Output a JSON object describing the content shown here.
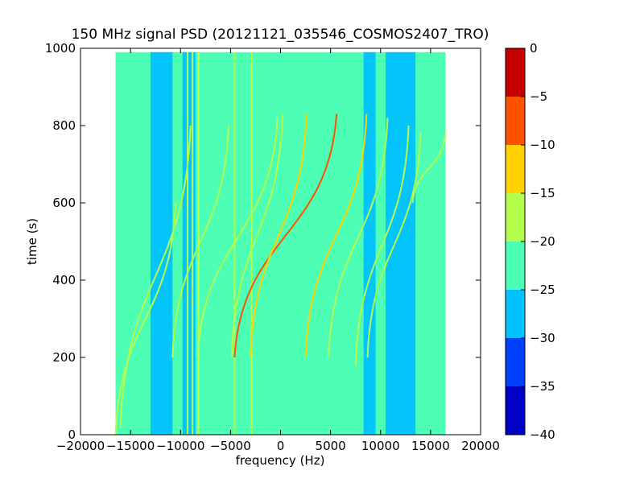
{
  "chart_data": {
    "type": "heatmap",
    "title": "150 MHz signal PSD (20121121_035546_COSMOS2407_TRO)",
    "xlabel": "frequency (Hz)",
    "ylabel": "time (s)",
    "xlim": [
      -20000,
      20000
    ],
    "ylim": [
      0,
      1000
    ],
    "x_ticks": [
      -20000,
      -15000,
      -10000,
      -5000,
      0,
      5000,
      10000,
      15000,
      20000
    ],
    "x_tick_labels": [
      "−20000",
      "−15000",
      "−10000",
      "−5000",
      "0",
      "5000",
      "10000",
      "15000",
      "20000"
    ],
    "y_ticks": [
      0,
      200,
      400,
      600,
      800,
      1000
    ],
    "y_tick_labels": [
      "0",
      "200",
      "400",
      "600",
      "800",
      "1000"
    ],
    "data_extent": {
      "x": [
        -16500,
        16500
      ],
      "y": [
        0,
        990
      ]
    },
    "background_level": -22.5,
    "bands": [
      {
        "x0": -13000,
        "x1": -10800,
        "level": -27.5
      },
      {
        "x0": -9800,
        "x1": -8500,
        "level": -27.5
      },
      {
        "x0": 8300,
        "x1": 9500,
        "level": -27.5
      },
      {
        "x0": 10500,
        "x1": 13500,
        "level": -27.5
      }
    ],
    "vertical_lines": [
      {
        "x": -9300,
        "level": -17.5
      },
      {
        "x": -8800,
        "level": -17.5
      },
      {
        "x": -8200,
        "level": -17.5
      },
      {
        "x": -4600,
        "level": -17.5
      },
      {
        "x": -2900,
        "level": -17.5
      },
      {
        "x": -1200,
        "level": -22.5
      }
    ],
    "tracks": [
      {
        "x_start": -4600,
        "x_end": 5600,
        "t_start": 200,
        "t_end": 830,
        "level": -7.5
      },
      {
        "x_start": -3000,
        "x_end": 2600,
        "t_start": 200,
        "t_end": 830,
        "level": -12.5
      },
      {
        "x_start": -4900,
        "x_end": 200,
        "t_start": 200,
        "t_end": 830,
        "level": -17.5
      },
      {
        "x_start": -8300,
        "x_end": -300,
        "t_start": 200,
        "t_end": 820,
        "level": -17.5
      },
      {
        "x_start": -10800,
        "x_end": -5200,
        "t_start": 200,
        "t_end": 800,
        "level": -17.5
      },
      {
        "x_start": -16000,
        "x_end": -9000,
        "t_start": 20,
        "t_end": 800,
        "level": -17.5
      },
      {
        "x_start": -16500,
        "x_end": -10500,
        "t_start": 0,
        "t_end": 600,
        "level": -17.5
      },
      {
        "x_start": 2500,
        "x_end": 8600,
        "t_start": 200,
        "t_end": 830,
        "level": -12.5
      },
      {
        "x_start": 4800,
        "x_end": 10700,
        "t_start": 200,
        "t_end": 820,
        "level": -17.5
      },
      {
        "x_start": 7500,
        "x_end": 12800,
        "t_start": 180,
        "t_end": 800,
        "level": -17.5
      },
      {
        "x_start": 8700,
        "x_end": 14000,
        "t_start": 200,
        "t_end": 780,
        "level": -17.5
      },
      {
        "x_start": 13200,
        "x_end": 16500,
        "t_start": 600,
        "t_end": 780,
        "level": -17.5
      }
    ],
    "colorbar": {
      "range": [
        -40,
        0
      ],
      "levels": [
        -40,
        -35,
        -30,
        -25,
        -20,
        -15,
        -10,
        -5,
        0
      ],
      "tick_labels": [
        "−40",
        "−35",
        "−30",
        "−25",
        "−20",
        "−15",
        "−10",
        "−5",
        "0"
      ],
      "colors": [
        "#0000c6",
        "#0040ff",
        "#00c2ff",
        "#4dffb4",
        "#b4ff4d",
        "#ffd200",
        "#ff5200",
        "#c60000"
      ]
    }
  }
}
